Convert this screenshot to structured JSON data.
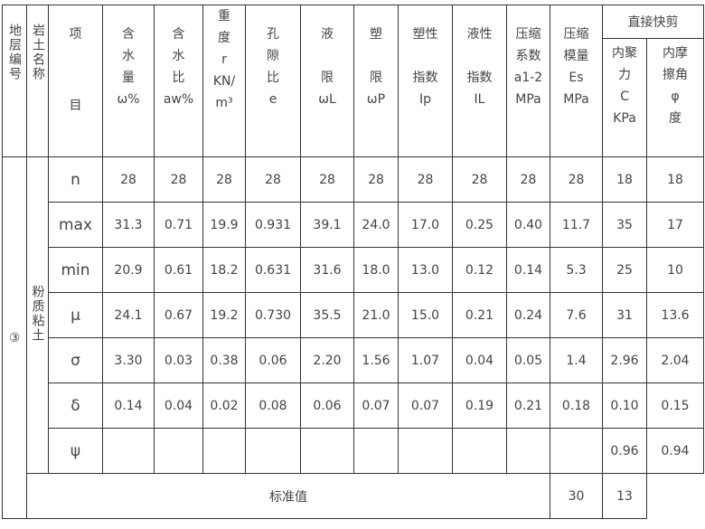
{
  "header": {
    "layer_no": "地层编号",
    "soil_name": "岩土名称",
    "item_top": "项",
    "item_bottom": "目",
    "columns": [
      "含\n水\n量\nω%",
      "含\n水\n比\naw%",
      "重\n度\nr\nKN/\nm³",
      "孔\n隙\n比\ne",
      "液\n\n限\nωL",
      "塑\n\n限\nωP",
      "塑性\n\n指数\nIp",
      "液性\n\n指数\nIL",
      "压缩\n系数\na1-2\nMPa",
      "压缩\n模量\nEs\nMPa"
    ],
    "shear_group": "直接快剪",
    "shear_columns": [
      "内聚\n力\nC\nKPa",
      "内摩\n擦角\nφ\n度"
    ]
  },
  "layer_no": "③",
  "soil_name": "粉质粘土",
  "rows": [
    {
      "label": "n",
      "values": [
        "28",
        "28",
        "28",
        "28",
        "28",
        "28",
        "28",
        "28",
        "28",
        "28",
        "18",
        "18"
      ]
    },
    {
      "label": "max",
      "values": [
        "31.3",
        "0.71",
        "19.9",
        "0.931",
        "39.1",
        "24.0",
        "17.0",
        "0.25",
        "0.40",
        "11.7",
        "35",
        "17"
      ]
    },
    {
      "label": "min",
      "values": [
        "20.9",
        "0.61",
        "18.2",
        "0.631",
        "31.6",
        "18.0",
        "13.0",
        "0.12",
        "0.14",
        "5.3",
        "25",
        "10"
      ]
    },
    {
      "label": "μ",
      "values": [
        "24.1",
        "0.67",
        "19.2",
        "0.730",
        "35.5",
        "21.0",
        "15.0",
        "0.21",
        "0.24",
        "7.6",
        "31",
        "13.6"
      ]
    },
    {
      "label": "σ",
      "values": [
        "3.30",
        "0.03",
        "0.38",
        "0.06",
        "2.20",
        "1.56",
        "1.07",
        "0.04",
        "0.05",
        "1.4",
        "2.96",
        "2.04"
      ]
    },
    {
      "label": "δ",
      "values": [
        "0.14",
        "0.04",
        "0.02",
        "0.08",
        "0.06",
        "0.07",
        "0.07",
        "0.19",
        "0.21",
        "0.18",
        "0.10",
        "0.15"
      ]
    },
    {
      "label": "ψ",
      "values": [
        "",
        "",
        "",
        "",
        "",
        "",
        "",
        "",
        "",
        "",
        "0.96",
        "0.94"
      ]
    }
  ],
  "standard": {
    "label": "标准值",
    "values": [
      "30",
      "13"
    ]
  }
}
